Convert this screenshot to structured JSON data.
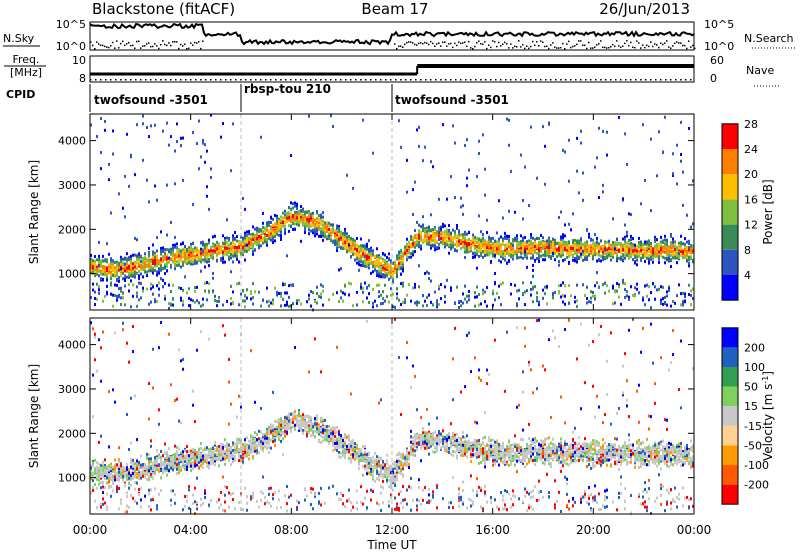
{
  "header": {
    "station": "Blackstone (fitACF)",
    "beam": "Beam 17",
    "date": "26/Jun/2013"
  },
  "noise_panel": {
    "left_label": "N.Sky",
    "right_label": "N.Search",
    "left_ticks": [
      "10^5",
      "10^0"
    ],
    "right_ticks": [
      "10^5",
      "10^0"
    ]
  },
  "freq_panel": {
    "left_label_1": "Freq.",
    "left_label_2": "[MHz]",
    "right_label": "Nave",
    "left_ticks": [
      "10",
      "8"
    ],
    "right_ticks": [
      "60",
      "0"
    ]
  },
  "cpid": {
    "label": "CPID",
    "segments": [
      {
        "name": "twofsound -3501",
        "start_hour": 0,
        "end_hour": 6
      },
      {
        "name": "rbsp-tou 210",
        "start_hour": 6,
        "end_hour": 12
      },
      {
        "name": "twofsound -3501",
        "start_hour": 12,
        "end_hour": 24
      }
    ]
  },
  "chart_data": [
    {
      "type": "heatmap",
      "title": "",
      "xlabel": "Time UT",
      "ylabel": "Slant Range [km]",
      "xlim": [
        0,
        24
      ],
      "ylim": [
        180,
        4600
      ],
      "x_ticks": [
        "00:00",
        "04:00",
        "08:00",
        "12:00",
        "16:00",
        "20:00",
        "00:00"
      ],
      "y_ticks": [
        "1000",
        "2000",
        "3000",
        "4000"
      ],
      "y_tick_values": [
        1000,
        2000,
        3000,
        4000
      ],
      "colorbar": {
        "label": "Power [dB]",
        "ticks": [
          "4",
          "8",
          "12",
          "16",
          "20",
          "24",
          "28"
        ],
        "colors": [
          "#0000ff",
          "#2d55c0",
          "#3b8a5a",
          "#7fc040",
          "#ffbf00",
          "#ff7f00",
          "#ff0000"
        ]
      },
      "echo_band_km": [
        [
          0,
          1150
        ],
        [
          1,
          1080
        ],
        [
          2,
          1200
        ],
        [
          3,
          1330
        ],
        [
          4,
          1430
        ],
        [
          5,
          1520
        ],
        [
          6,
          1600
        ],
        [
          7,
          1900
        ],
        [
          8,
          2300
        ],
        [
          9,
          2150
        ],
        [
          10,
          1750
        ],
        [
          11,
          1350
        ],
        [
          12,
          1050
        ],
        [
          13,
          1850
        ],
        [
          14,
          1820
        ],
        [
          15,
          1680
        ],
        [
          16,
          1560
        ],
        [
          17,
          1560
        ],
        [
          18,
          1580
        ],
        [
          19,
          1560
        ],
        [
          20,
          1540
        ],
        [
          21,
          1550
        ],
        [
          22,
          1520
        ],
        [
          23,
          1540
        ],
        [
          24,
          1480
        ]
      ]
    },
    {
      "type": "heatmap",
      "title": "",
      "xlabel": "Time UT",
      "ylabel": "Slant Range [km]",
      "xlim": [
        0,
        24
      ],
      "ylim": [
        180,
        4600
      ],
      "x_ticks": [
        "00:00",
        "04:00",
        "08:00",
        "12:00",
        "16:00",
        "20:00",
        "00:00"
      ],
      "y_ticks": [
        "1000",
        "2000",
        "3000",
        "4000"
      ],
      "y_tick_values": [
        1000,
        2000,
        3000,
        4000
      ],
      "colorbar": {
        "label_main": "Velocity [m s",
        "label_exp": "-1",
        "label_close": "]",
        "ticks": [
          "-200",
          "-100",
          "-50",
          "-15",
          "15",
          "50",
          "100",
          "200"
        ],
        "colors": [
          "#ff0000",
          "#ff5a00",
          "#ff9a00",
          "#ffd090",
          "#c8c8c8",
          "#80d060",
          "#30a050",
          "#2060c0",
          "#0000ff"
        ]
      },
      "echo_band_km": [
        [
          0,
          1150
        ],
        [
          1,
          1080
        ],
        [
          2,
          1200
        ],
        [
          3,
          1330
        ],
        [
          4,
          1430
        ],
        [
          5,
          1520
        ],
        [
          6,
          1600
        ],
        [
          7,
          1900
        ],
        [
          8,
          2300
        ],
        [
          9,
          2150
        ],
        [
          10,
          1750
        ],
        [
          11,
          1350
        ],
        [
          12,
          1050
        ],
        [
          13,
          1850
        ],
        [
          14,
          1820
        ],
        [
          15,
          1680
        ],
        [
          16,
          1560
        ],
        [
          17,
          1560
        ],
        [
          18,
          1580
        ],
        [
          19,
          1560
        ],
        [
          20,
          1540
        ],
        [
          21,
          1550
        ],
        [
          22,
          1520
        ],
        [
          23,
          1540
        ],
        [
          24,
          1480
        ]
      ]
    }
  ]
}
